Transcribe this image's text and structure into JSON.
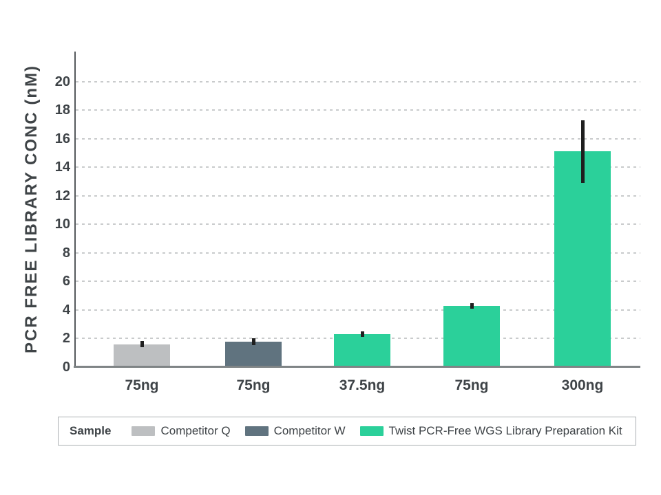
{
  "chart_data": {
    "type": "bar",
    "title": "",
    "xlabel": "",
    "ylabel": "PCR FREE LIBRARY CONC (nM)",
    "ylim": [
      0,
      22.1
    ],
    "yticks": [
      0,
      2,
      4,
      6,
      8,
      10,
      12,
      14,
      16,
      18,
      20
    ],
    "grid": "horizontal-dashed",
    "categories": [
      "75ng",
      "75ng",
      "37.5ng",
      "75ng",
      "300ng"
    ],
    "bars": [
      {
        "category": "75ng",
        "series": "Competitor Q",
        "value": 1.6,
        "error_low": 1.4,
        "error_high": 1.85,
        "color": "#bdbfc1"
      },
      {
        "category": "75ng",
        "series": "Competitor W",
        "value": 1.8,
        "error_low": 1.55,
        "error_high": 2.0,
        "color": "#60737f"
      },
      {
        "category": "37.5ng",
        "series": "Twist PCR-Free WGS Library Preparation Kit",
        "value": 2.3,
        "error_low": 2.1,
        "error_high": 2.5,
        "color": "#2bd09a"
      },
      {
        "category": "75ng",
        "series": "Twist PCR-Free WGS Library Preparation Kit",
        "value": 4.3,
        "error_low": 4.1,
        "error_high": 4.5,
        "color": "#2bd09a"
      },
      {
        "category": "300ng",
        "series": "Twist PCR-Free WGS Library Preparation Kit",
        "value": 15.1,
        "error_low": 12.9,
        "error_high": 17.3,
        "color": "#2bd09a"
      }
    ],
    "legend": {
      "title": "Sample",
      "position": "bottom",
      "entries": [
        {
          "label": "Competitor Q",
          "color": "#bdbfc1"
        },
        {
          "label": "Competitor W",
          "color": "#60737f"
        },
        {
          "label": "Twist PCR-Free WGS Library Preparation Kit",
          "color": "#2bd09a"
        }
      ]
    }
  },
  "colors": {
    "text": "#3e4347",
    "gridline": "#c9cbcc",
    "x_axis_line": "#7f8486",
    "y_axis_line": "#55595c",
    "error_bar": "#1f1f1f",
    "legend_border": "#a9aeb1",
    "background": "#ffffff"
  }
}
